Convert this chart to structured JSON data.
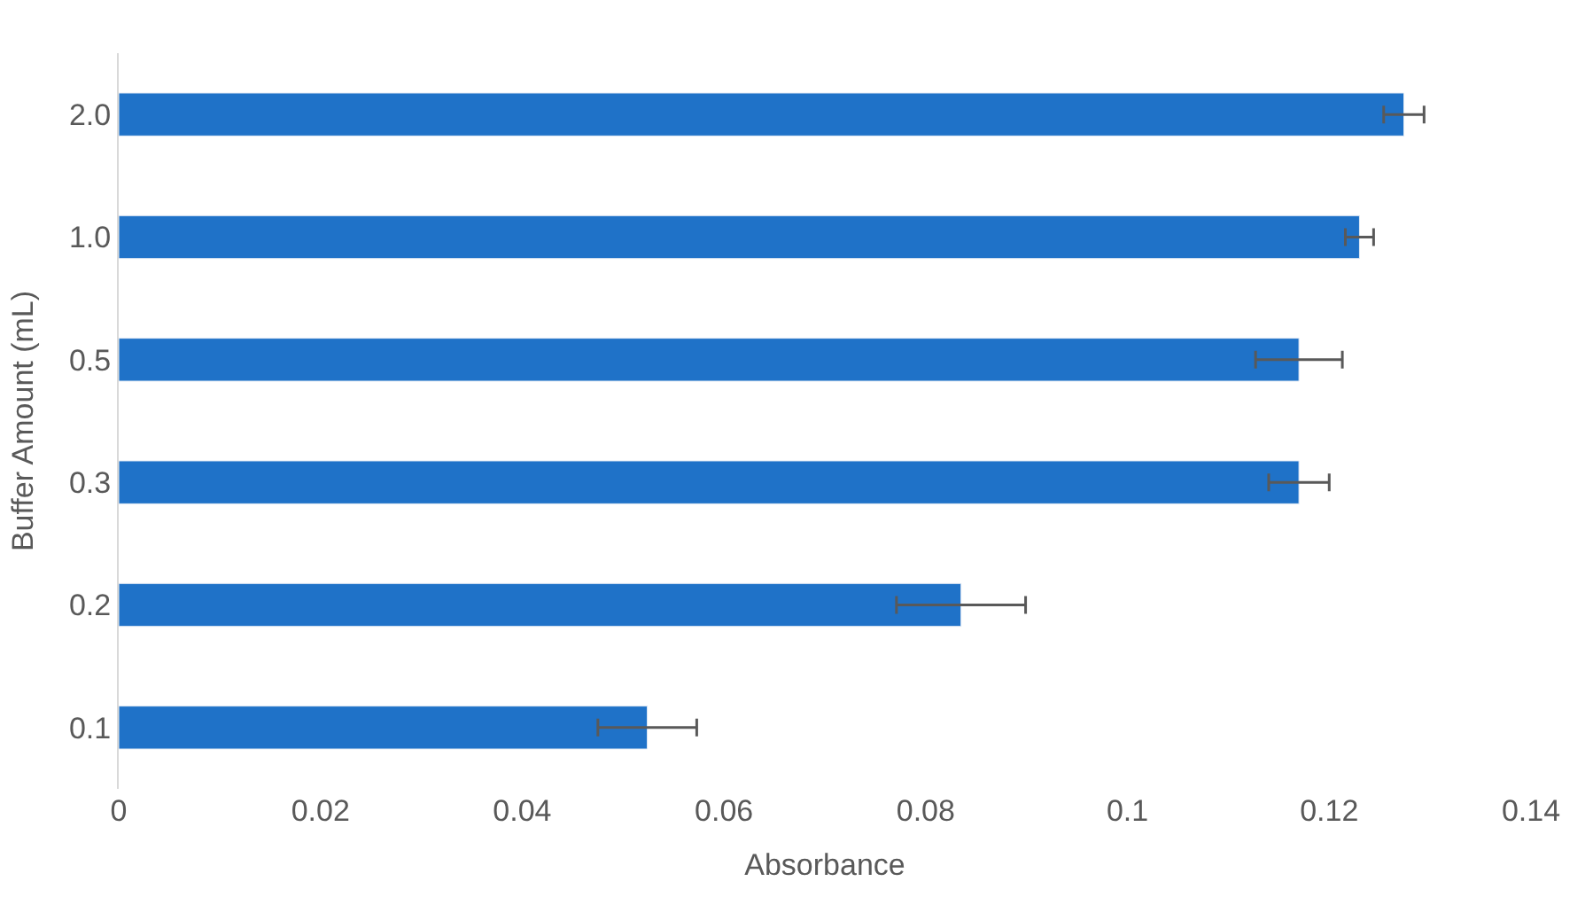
{
  "chart_data": {
    "type": "bar",
    "orientation": "horizontal",
    "categories": [
      "2.0",
      "1.0",
      "0.5",
      "0.3",
      "0.2",
      "0.1"
    ],
    "values": [
      0.1274,
      0.123,
      0.117,
      0.117,
      0.0835,
      0.0524
    ],
    "errors": [
      0.002,
      0.0014,
      0.0043,
      0.003,
      0.0064,
      0.0049
    ],
    "color": "#1f72c8",
    "xlabel": "Absorbance",
    "ylabel": "Buffer Amount (mL)",
    "xlim": [
      0,
      0.14
    ],
    "xticks": [
      0,
      0.02,
      0.04,
      0.06,
      0.08,
      0.1,
      0.12,
      0.14
    ],
    "legend": false
  }
}
